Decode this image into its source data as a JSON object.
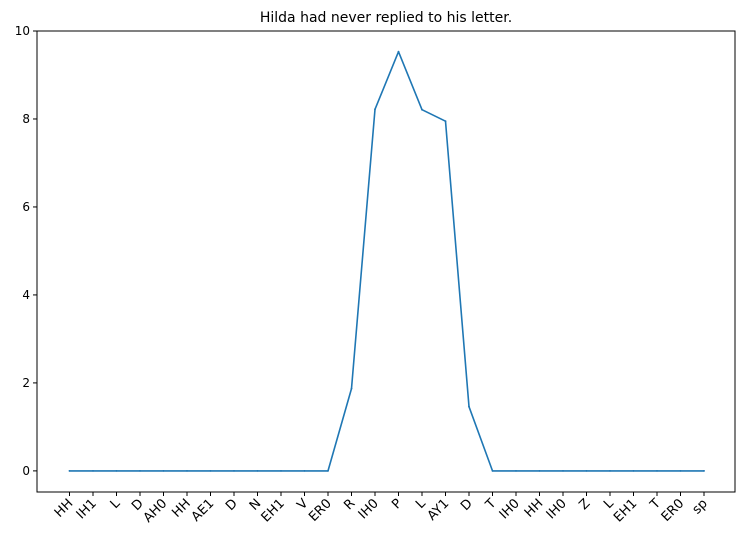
{
  "chart_data": {
    "type": "line",
    "title": "Hilda had never replied to his letter.",
    "xlabel": "",
    "ylabel": "",
    "categories": [
      "HH",
      "IH1",
      "L",
      "D",
      "AH0",
      "HH",
      "AE1",
      "D",
      "N",
      "EH1",
      "V",
      "ER0",
      "R",
      "IH0",
      "P",
      "L",
      "AY1",
      "D",
      "T",
      "IH0",
      "HH",
      "IH0",
      "Z",
      "L",
      "EH1",
      "T",
      "ER0",
      "sp"
    ],
    "series": [
      {
        "values": [
          0,
          0,
          0,
          0,
          0,
          0,
          0,
          0,
          0,
          0,
          0,
          0,
          1.87,
          8.22,
          9.53,
          8.21,
          7.95,
          1.46,
          0,
          0,
          0,
          0,
          0,
          0,
          0,
          0,
          0,
          0
        ],
        "color": "#1f77b4"
      }
    ],
    "ylim": [
      -0.48,
      10
    ],
    "yticks": [
      0,
      2,
      4,
      6,
      8,
      10
    ],
    "grid": false,
    "legend": "none"
  }
}
